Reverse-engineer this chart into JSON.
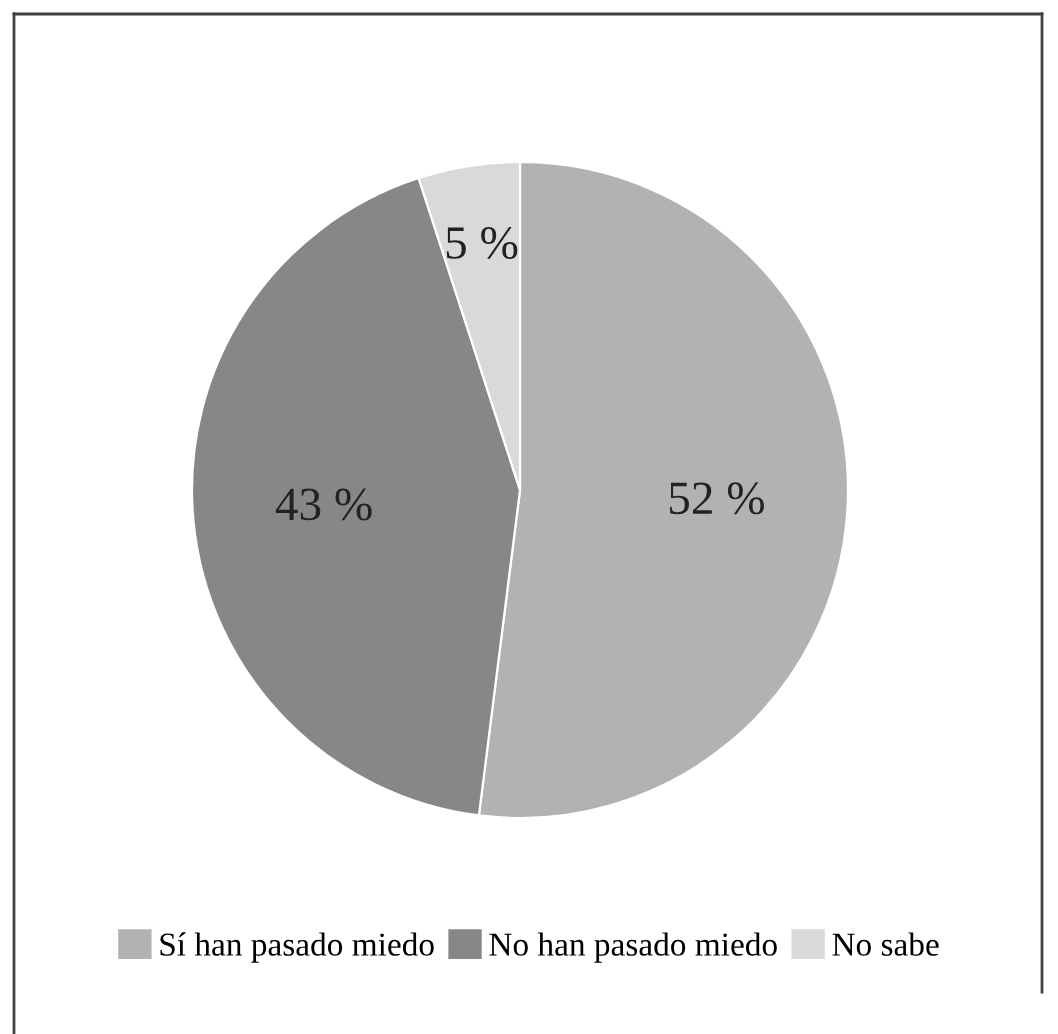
{
  "chart_data": {
    "type": "pie",
    "categories": [
      "Sí han pasado miedo",
      "No han pasado miedo",
      "No sabe"
    ],
    "values": [
      52,
      43,
      5
    ],
    "value_labels": [
      "52 %",
      "43 %",
      "5 %"
    ],
    "colors": [
      "#b2b2b2",
      "#878787",
      "#d9d9d9"
    ],
    "legend": "bottom"
  }
}
